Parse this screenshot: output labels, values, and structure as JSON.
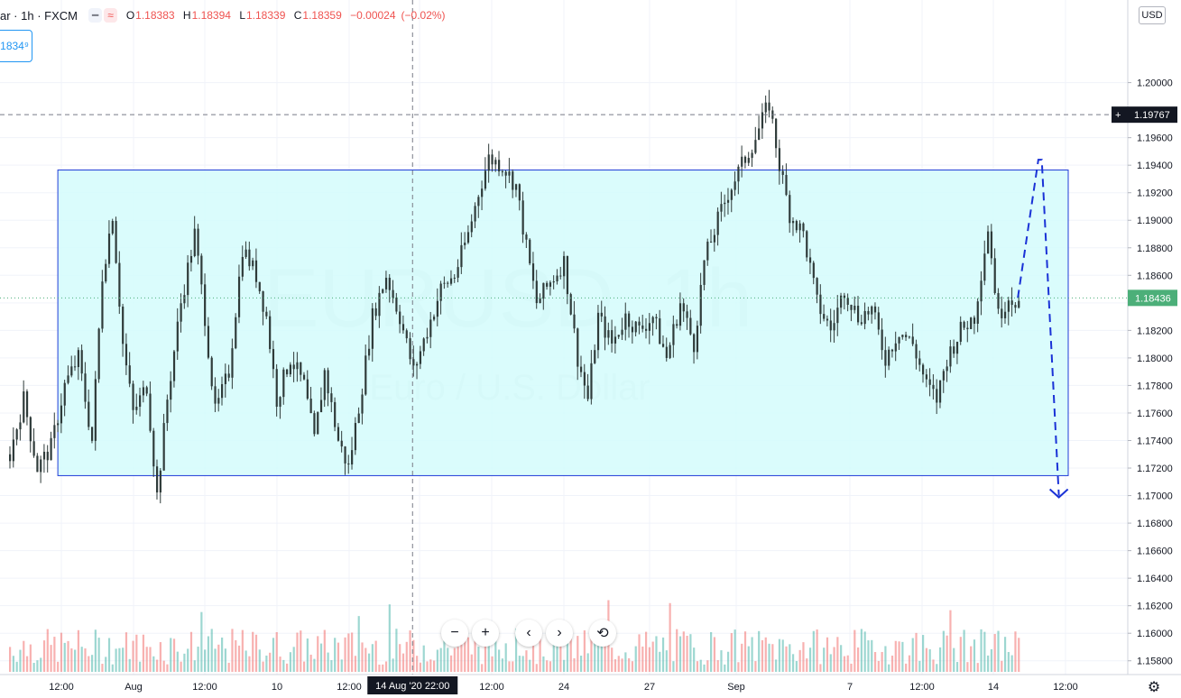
{
  "header": {
    "symbol_partial": "ar",
    "interval": "1h",
    "exchange": "FXCM",
    "ohlc": {
      "o": "1.18383",
      "h": "1.18394",
      "l": "1.18339",
      "c": "1.18359",
      "change": "−0.00024",
      "change_pct": "(−0.02%)"
    },
    "indicator_icons": [
      "minus-icon",
      "wave-icon"
    ],
    "price_box": "1834⁹",
    "currency_badge": "USD"
  },
  "watermark": {
    "symbol": "EURUSD, 1h",
    "name": "Euro / U.S. Dollar"
  },
  "colors": {
    "up": "#26a69a",
    "down": "#ef5350",
    "candle": "#2f3b3a",
    "box_fill": "#d4fbfb",
    "box_border": "#1f3bd8",
    "projection": "#1a32d6",
    "last_price_bg": "#4caf79",
    "crosshair_label_bg": "#131722",
    "axis_text": "#131722"
  },
  "chart_data": {
    "type": "candlestick",
    "symbol": "EURUSD",
    "interval": "1h",
    "y_axis": {
      "ticks": [
        "1.20000",
        "1.19600",
        "1.19400",
        "1.19200",
        "1.19000",
        "1.18800",
        "1.18600",
        "1.18400",
        "1.18200",
        "1.18000",
        "1.17800",
        "1.17600",
        "1.17400",
        "1.17200",
        "1.17000",
        "1.16800",
        "1.16600",
        "1.16400",
        "1.16200",
        "1.16000",
        "1.15800"
      ],
      "range": [
        1.157,
        1.206
      ]
    },
    "x_axis": {
      "labels": [
        "12:00",
        "Aug",
        "12:00",
        "10",
        "12:00",
        "12:00",
        "24",
        "27",
        "Sep",
        "7",
        "12:00",
        "14",
        "12:00"
      ],
      "crosshair_label": "14 Aug '20   22:00"
    },
    "price_path": [
      [
        0,
        1.173
      ],
      [
        4,
        1.177
      ],
      [
        8,
        1.172
      ],
      [
        12,
        1.1735
      ],
      [
        16,
        1.178
      ],
      [
        20,
        1.18
      ],
      [
        24,
        1.174
      ],
      [
        27,
        1.186
      ],
      [
        30,
        1.1905
      ],
      [
        33,
        1.181
      ],
      [
        36,
        1.176
      ],
      [
        40,
        1.178
      ],
      [
        43,
        1.17
      ],
      [
        46,
        1.177
      ],
      [
        50,
        1.184
      ],
      [
        54,
        1.189
      ],
      [
        57,
        1.183
      ],
      [
        60,
        1.176
      ],
      [
        64,
        1.179
      ],
      [
        68,
        1.188
      ],
      [
        72,
        1.186
      ],
      [
        75,
        1.183
      ],
      [
        78,
        1.177
      ],
      [
        82,
        1.18
      ],
      [
        86,
        1.178
      ],
      [
        89,
        1.174
      ],
      [
        92,
        1.179
      ],
      [
        96,
        1.174
      ],
      [
        99,
        1.172
      ],
      [
        103,
        1.178
      ],
      [
        106,
        1.183
      ],
      [
        110,
        1.186
      ],
      [
        114,
        1.183
      ],
      [
        118,
        1.179
      ],
      [
        122,
        1.182
      ],
      [
        126,
        1.185
      ],
      [
        130,
        1.186
      ],
      [
        134,
        1.189
      ],
      [
        137,
        1.192
      ],
      [
        140,
        1.1945
      ],
      [
        144,
        1.194
      ],
      [
        148,
        1.1925
      ],
      [
        151,
        1.188
      ],
      [
        154,
        1.184
      ],
      [
        158,
        1.1855
      ],
      [
        162,
        1.187
      ],
      [
        166,
        1.18
      ],
      [
        169,
        1.177
      ],
      [
        172,
        1.183
      ],
      [
        176,
        1.181
      ],
      [
        180,
        1.183
      ],
      [
        184,
        1.182
      ],
      [
        188,
        1.183
      ],
      [
        192,
        1.18
      ],
      [
        196,
        1.184
      ],
      [
        200,
        1.181
      ],
      [
        203,
        1.187
      ],
      [
        207,
        1.19
      ],
      [
        210,
        1.192
      ],
      [
        214,
        1.194
      ],
      [
        218,
        1.196
      ],
      [
        222,
        1.1985
      ],
      [
        225,
        1.194
      ],
      [
        228,
        1.1905
      ],
      [
        232,
        1.189
      ],
      [
        236,
        1.184
      ],
      [
        240,
        1.182
      ],
      [
        244,
        1.185
      ],
      [
        248,
        1.183
      ],
      [
        252,
        1.1835
      ],
      [
        256,
        1.18
      ],
      [
        260,
        1.182
      ],
      [
        264,
        1.181
      ],
      [
        268,
        1.178
      ],
      [
        271,
        1.177
      ],
      [
        274,
        1.18
      ],
      [
        278,
        1.182
      ],
      [
        282,
        1.183
      ],
      [
        286,
        1.1895
      ],
      [
        289,
        1.183
      ],
      [
        292,
        1.1845
      ],
      [
        295,
        1.184
      ]
    ],
    "last_candle_index": 295,
    "total_slots": 310,
    "range_box": {
      "top": 1.19365,
      "bottom": 1.17145,
      "x_start_slot": 9,
      "x_end_slot": 308
    },
    "projection_path": [
      [
        295,
        1.18436
      ],
      [
        301,
        1.1944
      ],
      [
        302,
        1.1944
      ],
      [
        307,
        1.17
      ]
    ],
    "current_price": {
      "value": 1.18436,
      "label": "1.18436"
    },
    "crosshair_price": {
      "value": 1.19767,
      "label": "1.19767"
    },
    "crosshair_slot": 118,
    "volume": "histogram"
  },
  "navigation": {
    "zoom_out": "−",
    "zoom_in": "+",
    "scroll_left": "‹",
    "scroll_right": "›",
    "reset": "⟲"
  }
}
